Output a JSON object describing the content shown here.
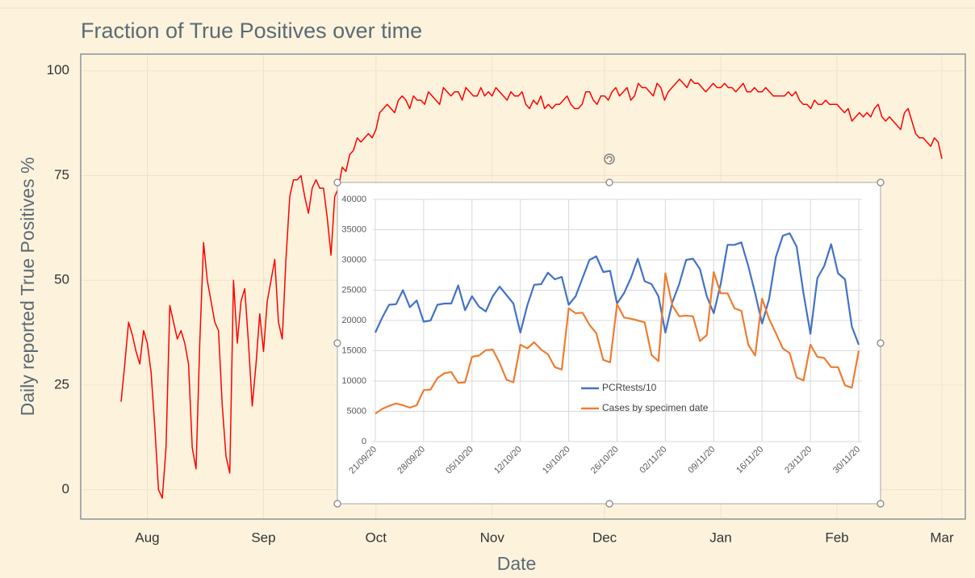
{
  "chart_data": [
    {
      "type": "line",
      "title": "Fraction of True Positives over time",
      "x_label": "Date",
      "y_label": "Daily reported True Positives %",
      "color": "#ff0000",
      "categories": [
        null,
        null,
        null,
        null,
        null,
        null,
        null,
        "Aug",
        null,
        null,
        null,
        null,
        null,
        null,
        null,
        null,
        null,
        null,
        null,
        null,
        null,
        null,
        null,
        null,
        null,
        null,
        null,
        null,
        null,
        null,
        null,
        null,
        null,
        null,
        null,
        null,
        null,
        null,
        "Sep",
        null,
        null,
        null,
        null,
        null,
        null,
        null,
        null,
        null,
        null,
        null,
        null,
        null,
        null,
        null,
        null,
        null,
        null,
        null,
        null,
        null,
        null,
        null,
        null,
        null,
        null,
        null,
        null,
        null,
        "Oct",
        null,
        null,
        null,
        null,
        null,
        null,
        null,
        null,
        null,
        null,
        null,
        null,
        null,
        null,
        null,
        null,
        null,
        null,
        null,
        null,
        null,
        null,
        null,
        null,
        null,
        null,
        null,
        null,
        null,
        null,
        "Nov",
        null,
        null,
        null,
        null,
        null,
        null,
        null,
        null,
        null,
        null,
        null,
        null,
        null,
        null,
        null,
        null,
        null,
        null,
        null,
        null,
        null,
        null,
        null,
        null,
        null,
        null,
        null,
        null,
        null,
        "Dec",
        null,
        null,
        null,
        null,
        null,
        null,
        null,
        null,
        null,
        null,
        null,
        null,
        null,
        null,
        null,
        null,
        null,
        null,
        null,
        null,
        null,
        null,
        null,
        null,
        null,
        null,
        null,
        null,
        null,
        null,
        "Jan",
        null,
        null,
        null,
        null,
        null,
        null,
        null,
        null,
        null,
        null,
        null,
        null,
        null,
        null,
        null,
        null,
        null,
        null,
        null,
        null,
        null,
        null,
        null,
        null,
        null,
        null,
        null,
        null,
        null,
        null,
        "Feb",
        null,
        null,
        null,
        null,
        null,
        null,
        null,
        null,
        null,
        null,
        null,
        null,
        null,
        null,
        null,
        null,
        null,
        null,
        null,
        null,
        null,
        null,
        null,
        null,
        null,
        null,
        null,
        "Mar"
      ],
      "values": [
        21,
        30,
        40,
        37,
        33,
        30,
        38,
        35,
        28,
        15,
        0,
        -2,
        10,
        44,
        40,
        36,
        38,
        35,
        30,
        10,
        5,
        35,
        59,
        50,
        45,
        40,
        38,
        20,
        8,
        4,
        50,
        35,
        45,
        48,
        35,
        20,
        30,
        42,
        33,
        45,
        50,
        55,
        40,
        36,
        55,
        70,
        74,
        74,
        75,
        70,
        66,
        72,
        74,
        72,
        72,
        65,
        56,
        70,
        72,
        77,
        76,
        80,
        81,
        84,
        83,
        84,
        85,
        84,
        86,
        90,
        91,
        92,
        91,
        90,
        93,
        94,
        93,
        91,
        94,
        93,
        93,
        92,
        95,
        94,
        93,
        92,
        96,
        95,
        94,
        95,
        95,
        93,
        96,
        95,
        94,
        94,
        96,
        94,
        95,
        94,
        96,
        95,
        94,
        93,
        95,
        94,
        94,
        95,
        92,
        91,
        93,
        92,
        94,
        91,
        92,
        91,
        92,
        92,
        93,
        94,
        92,
        91,
        91,
        92,
        95,
        95,
        93,
        92,
        94,
        94,
        93,
        95,
        96,
        94,
        95,
        96,
        93,
        94,
        97,
        96,
        96,
        95,
        94,
        97,
        96,
        93,
        95,
        96,
        97,
        98,
        97,
        96,
        98,
        97,
        97,
        96,
        95,
        96,
        97,
        96,
        96,
        97,
        96,
        96,
        95,
        96,
        97,
        95,
        95,
        96,
        95,
        95,
        96,
        95,
        94,
        94,
        94,
        94,
        95,
        94,
        95,
        93,
        92,
        92,
        91,
        93,
        92,
        92,
        93,
        92,
        92,
        92,
        91,
        90,
        91,
        88,
        89,
        90,
        89,
        90,
        89,
        91,
        92,
        89,
        88,
        89,
        88,
        87,
        86,
        90,
        91,
        88,
        85,
        84,
        84,
        83,
        82,
        84,
        83,
        79
      ],
      "ylim": [
        -7,
        104
      ],
      "yticks": [
        0,
        25,
        50,
        75,
        100
      ],
      "grid": true
    },
    {
      "type": "line",
      "legend": "bottom-center",
      "categories": [
        "21/09/20",
        null,
        null,
        null,
        null,
        null,
        null,
        "28/09/20",
        null,
        null,
        null,
        null,
        null,
        null,
        "05/10/20",
        null,
        null,
        null,
        null,
        null,
        null,
        "12/10/20",
        null,
        null,
        null,
        null,
        null,
        null,
        "19/10/20",
        null,
        null,
        null,
        null,
        null,
        null,
        "26/10/20",
        null,
        null,
        null,
        null,
        null,
        null,
        "02/11/20",
        null,
        null,
        null,
        null,
        null,
        null,
        "09/11/20",
        null,
        null,
        null,
        null,
        null,
        null,
        "16/11/20",
        null,
        null,
        null,
        null,
        null,
        null,
        "23/11/20",
        null,
        null,
        null,
        null,
        null,
        null,
        "30/11/20"
      ],
      "series": [
        {
          "name": "PCRtests/10",
          "color": "#4472c4",
          "values": [
            18000,
            20500,
            22600,
            22700,
            25000,
            22200,
            23300,
            19800,
            20000,
            22600,
            22800,
            22800,
            25800,
            21700,
            24000,
            22300,
            21500,
            24000,
            25600,
            24200,
            22800,
            18000,
            22500,
            25900,
            26000,
            27900,
            26800,
            27200,
            22600,
            24000,
            27000,
            30000,
            30600,
            28000,
            28200,
            22800,
            24500,
            27000,
            30200,
            26500,
            26000,
            24000,
            18000,
            23000,
            26000,
            30000,
            30200,
            28500,
            24000,
            21200,
            26000,
            32500,
            32500,
            32900,
            29000,
            24500,
            19500,
            23500,
            30500,
            34000,
            34400,
            32200,
            24500,
            17800,
            27000,
            29000,
            32600,
            27800,
            26800,
            19000,
            16000
          ]
        },
        {
          "name": "Cases by specimen date",
          "color": "#ed7d31",
          "values": [
            4600,
            5400,
            5900,
            6300,
            6000,
            5600,
            6000,
            8500,
            8600,
            10500,
            11300,
            11500,
            9700,
            9800,
            14000,
            14200,
            15100,
            15200,
            13000,
            10200,
            9800,
            16000,
            15400,
            16400,
            15200,
            14400,
            12300,
            11900,
            22000,
            21200,
            21300,
            19300,
            17900,
            13500,
            13100,
            22700,
            20500,
            20300,
            20000,
            19700,
            14300,
            13300,
            27800,
            22500,
            20700,
            20800,
            20700,
            16600,
            17600,
            28000,
            24500,
            24500,
            22000,
            21600,
            16000,
            14200,
            23600,
            20300,
            17900,
            15400,
            14600,
            10600,
            10100,
            16000,
            14000,
            13800,
            12300,
            12300,
            9300,
            8900,
            15000
          ]
        }
      ],
      "ylim": [
        0,
        40000
      ],
      "yticks": [
        0,
        5000,
        10000,
        15000,
        20000,
        25000,
        30000,
        35000,
        40000
      ],
      "grid": true
    }
  ]
}
